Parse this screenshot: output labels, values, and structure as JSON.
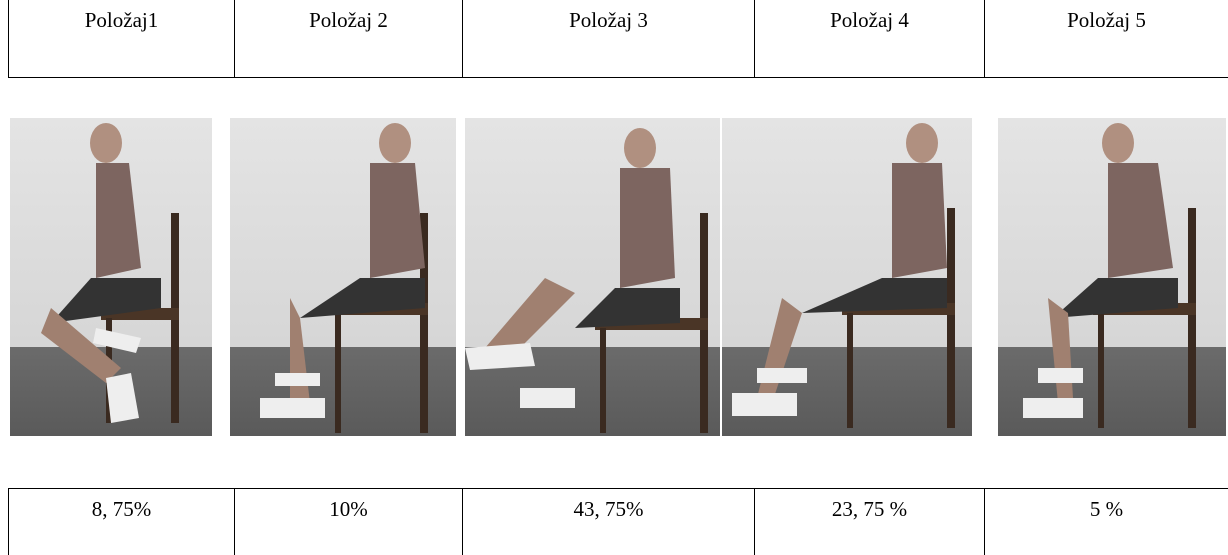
{
  "positions": [
    {
      "label": "Položaj1",
      "percent": "8, 75%"
    },
    {
      "label": "Položaj 2",
      "percent": "10%"
    },
    {
      "label": "Položaj 3",
      "percent": "43, 75%"
    },
    {
      "label": "Položaj 4",
      "percent": "23, 75 %"
    },
    {
      "label": "Položaj 5",
      "percent": "5 %"
    }
  ],
  "photos": [
    {
      "icon": "seated-woman-knee-flexed-feet-back-photo"
    },
    {
      "icon": "seated-woman-feet-flat-photo"
    },
    {
      "icon": "seated-woman-leg-extended-forward-photo"
    },
    {
      "icon": "seated-woman-feet-forward-photo"
    },
    {
      "icon": "seated-woman-feet-under-chair-photo"
    }
  ]
}
